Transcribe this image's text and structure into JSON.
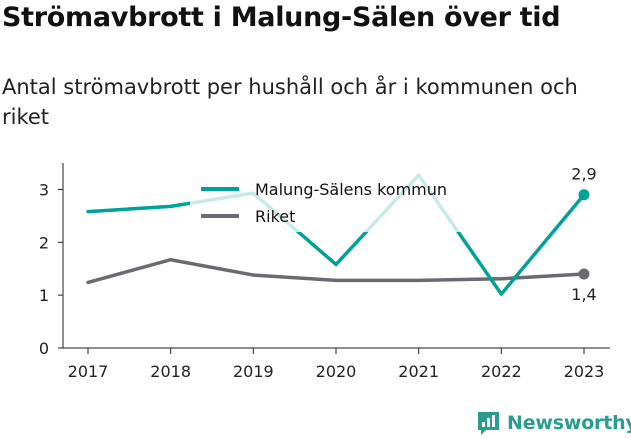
{
  "header": {
    "title": "Strömavbrott i Malung-Sälen över tid",
    "subtitle": "Antal strömavbrott per hushåll och år i kommunen och riket"
  },
  "brand": {
    "name": "Newsworthy",
    "icon": "newsworthy-logo-icon",
    "color": "#2a9d8f"
  },
  "chart_data": {
    "type": "line",
    "title": "Strömavbrott i Malung-Sälen över tid",
    "subtitle": "Antal strömavbrott per hushåll och år i kommunen och riket",
    "x": [
      "2017",
      "2018",
      "2019",
      "2020",
      "2021",
      "2022",
      "2023"
    ],
    "ylim": [
      0,
      3.5
    ],
    "yticks": [
      0,
      1,
      2,
      3
    ],
    "grid": false,
    "legend_position": "top-center",
    "series": [
      {
        "name": "Malung-Sälens kommun",
        "color": "#00a19a",
        "values": [
          2.58,
          2.68,
          2.93,
          1.58,
          3.27,
          1.02,
          2.9
        ],
        "end_label": "2,9"
      },
      {
        "name": "Riket",
        "color": "#6b6a70",
        "values": [
          1.24,
          1.67,
          1.38,
          1.28,
          1.28,
          1.31,
          1.4
        ],
        "end_label": "1,4"
      }
    ]
  }
}
